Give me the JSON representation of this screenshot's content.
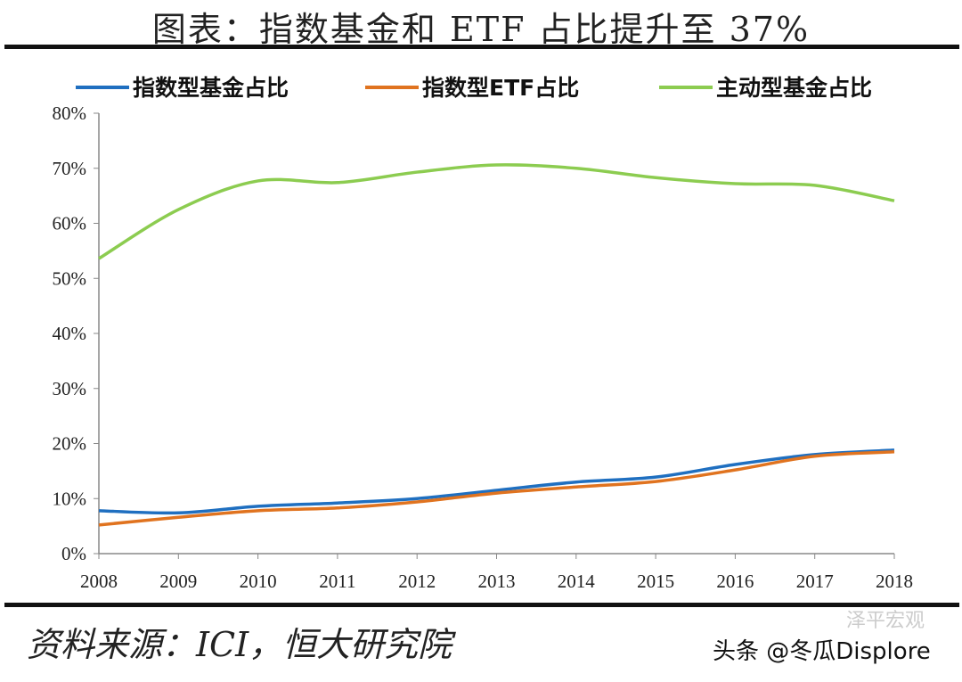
{
  "title": "图表：指数基金和 ETF 占比提升至 37%",
  "source": "资料来源：ICI，恒大研究院",
  "watermark": "头条 @冬瓜Displore",
  "watermark_faint": "泽平宏观",
  "chart_data": {
    "type": "line",
    "x": [
      "2008",
      "2009",
      "2010",
      "2011",
      "2012",
      "2013",
      "2014",
      "2015",
      "2016",
      "2017",
      "2018"
    ],
    "y_ticks": [
      "0%",
      "10%",
      "20%",
      "30%",
      "40%",
      "50%",
      "60%",
      "70%",
      "80%"
    ],
    "ylim": [
      0,
      80
    ],
    "legend_placement": "top",
    "grid": false,
    "series": [
      {
        "name": "指数型基金占比",
        "color": "#1f6fc0",
        "values": [
          7.8,
          7.4,
          8.6,
          9.2,
          10.0,
          11.5,
          13.0,
          13.9,
          16.2,
          18.0,
          18.8
        ]
      },
      {
        "name": "指数型ETF占比",
        "color": "#e0731f",
        "values": [
          5.2,
          6.6,
          7.8,
          8.3,
          9.4,
          11.0,
          12.1,
          13.1,
          15.2,
          17.7,
          18.5
        ]
      },
      {
        "name": "主动型基金占比",
        "color": "#8ccc50",
        "values": [
          53.6,
          62.5,
          67.7,
          67.4,
          69.3,
          70.6,
          70.0,
          68.3,
          67.2,
          66.9,
          64.1
        ]
      }
    ]
  }
}
